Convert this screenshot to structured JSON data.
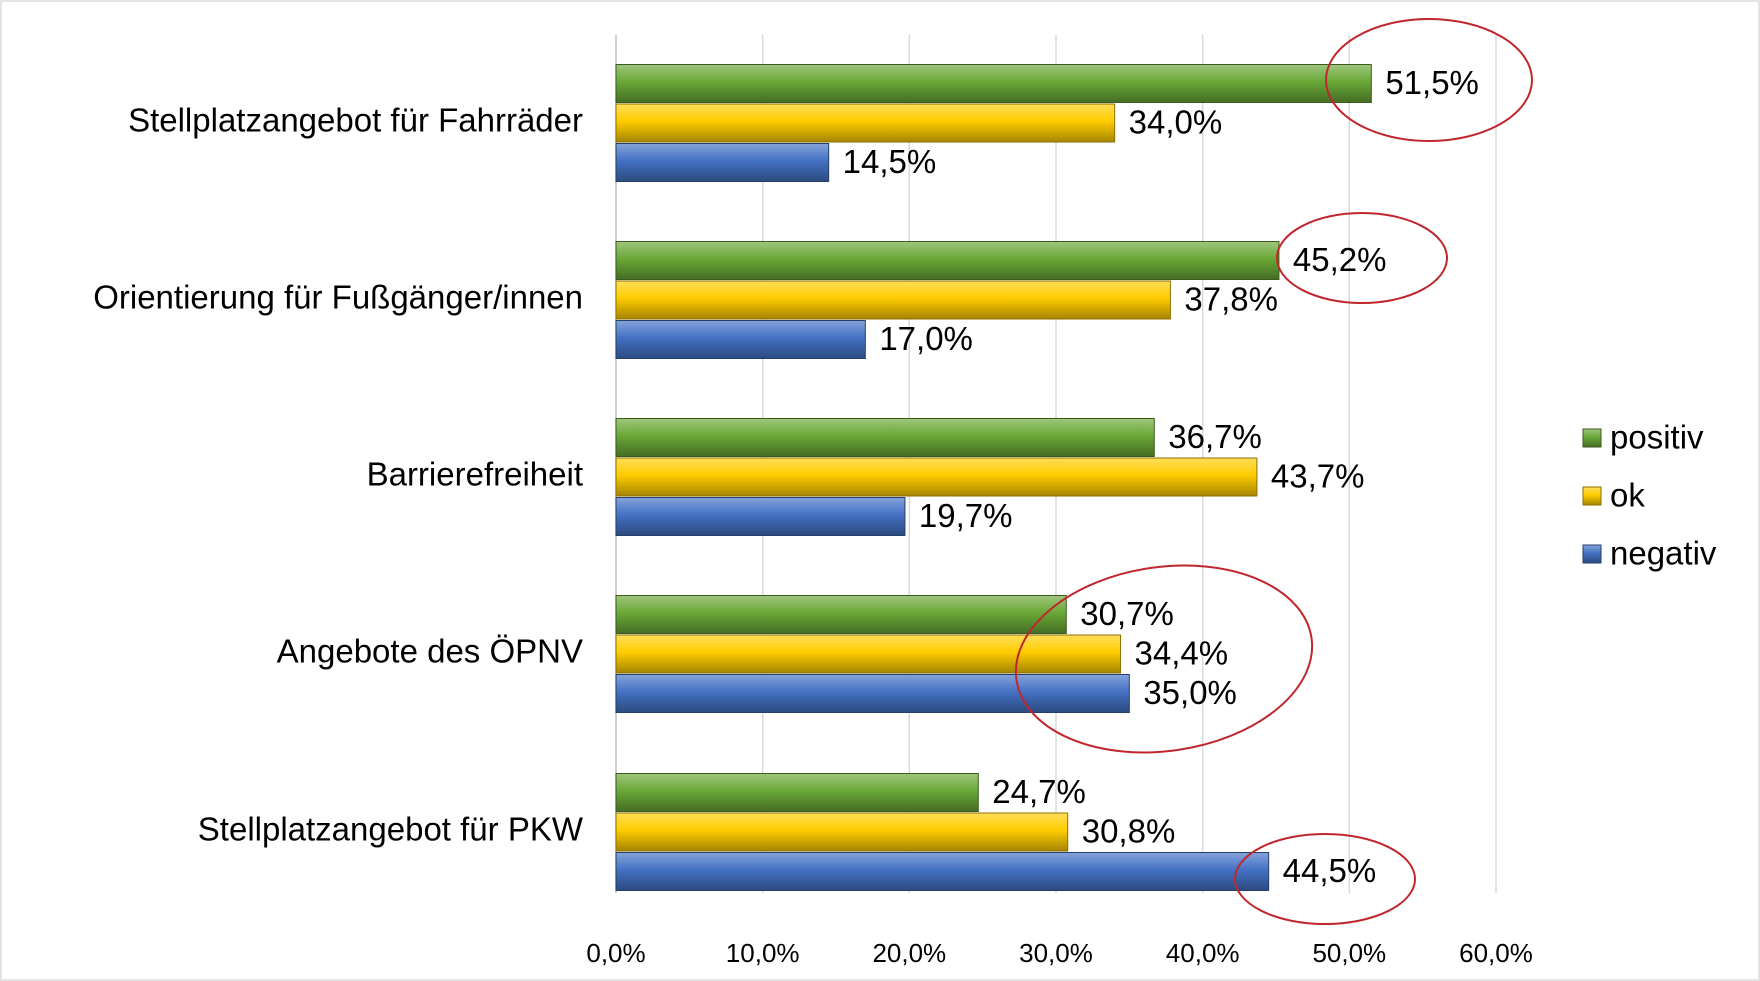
{
  "chart_data": {
    "type": "bar",
    "orientation": "horizontal",
    "categories": [
      "Stellplatzangebot für Fahrräder",
      "Orientierung für Fußgänger/innen",
      "Barrierefreiheit",
      "Angebote des ÖPNV",
      "Stellplatzangebot für PKW"
    ],
    "series": [
      {
        "name": "positiv",
        "color": "#6aa837",
        "values": [
          51.5,
          45.2,
          36.7,
          30.7,
          24.7
        ],
        "value_labels": [
          "51,5%",
          "45,2%",
          "36,7%",
          "30,7%",
          "24,7%"
        ]
      },
      {
        "name": "ok",
        "color": "#ffcc00",
        "values": [
          34.0,
          37.8,
          43.7,
          34.4,
          30.8
        ],
        "value_labels": [
          "34,0%",
          "37,8%",
          "43,7%",
          "34,4%",
          "30,8%"
        ]
      },
      {
        "name": "negativ",
        "color": "#4472c4",
        "values": [
          14.5,
          17.0,
          19.7,
          35.0,
          44.5
        ],
        "value_labels": [
          "14,5%",
          "17,0%",
          "19,7%",
          "35,0%",
          "44,5%"
        ]
      }
    ],
    "xlim": [
      0,
      60
    ],
    "xticks": [
      {
        "value": 0,
        "label": "0,0%"
      },
      {
        "value": 10,
        "label": "10,0%"
      },
      {
        "value": 20,
        "label": "20,0%"
      },
      {
        "value": 30,
        "label": "30,0%"
      },
      {
        "value": 40,
        "label": "40,0%"
      },
      {
        "value": 50,
        "label": "50,0%"
      },
      {
        "value": 60,
        "label": "60,0%"
      }
    ],
    "grid": true,
    "legend": "right"
  }
}
